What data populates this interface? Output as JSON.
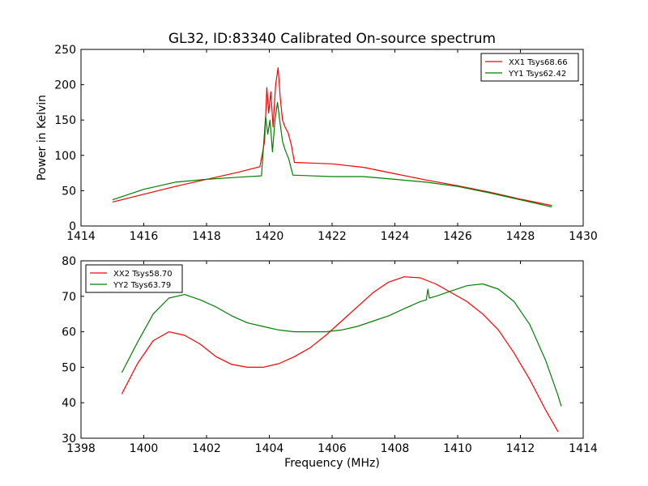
{
  "figure": {
    "title": "GL32, ID:83340 Calibrated On-source spectrum"
  },
  "chart_data": [
    {
      "type": "line",
      "title": "GL32, ID:83340 Calibrated On-source spectrum",
      "xlabel": "",
      "ylabel": "Power in Kelvin",
      "xlim": [
        1414,
        1430
      ],
      "ylim": [
        0,
        250
      ],
      "x_ticks": [
        1414,
        1416,
        1418,
        1420,
        1422,
        1424,
        1426,
        1428,
        1430
      ],
      "y_ticks": [
        0,
        50,
        100,
        150,
        200,
        250
      ],
      "legend_position": "top-right",
      "grid": false,
      "series": [
        {
          "name": "XX1 Tsys68.66",
          "color": "#ff0000",
          "points": [
            [
              1415.0,
              34
            ],
            [
              1416.0,
              45
            ],
            [
              1417.0,
              56
            ],
            [
              1418.0,
              66
            ],
            [
              1419.0,
              76
            ],
            [
              1419.7,
              84
            ],
            [
              1419.85,
              120
            ],
            [
              1419.92,
              196
            ],
            [
              1419.98,
              160
            ],
            [
              1420.05,
              190
            ],
            [
              1420.12,
              140
            ],
            [
              1420.2,
              200
            ],
            [
              1420.28,
              224
            ],
            [
              1420.35,
              180
            ],
            [
              1420.42,
              150
            ],
            [
              1420.5,
              140
            ],
            [
              1420.6,
              132
            ],
            [
              1420.7,
              115
            ],
            [
              1420.8,
              90
            ],
            [
              1422.0,
              88
            ],
            [
              1423.0,
              83
            ],
            [
              1424.0,
              74
            ],
            [
              1425.0,
              65
            ],
            [
              1426.0,
              57
            ],
            [
              1427.0,
              48
            ],
            [
              1428.0,
              38
            ],
            [
              1429.0,
              29
            ]
          ]
        },
        {
          "name": "YY1 Tsys62.42",
          "color": "#008000",
          "points": [
            [
              1415.0,
              37
            ],
            [
              1416.0,
              52
            ],
            [
              1417.0,
              62
            ],
            [
              1418.0,
              66
            ],
            [
              1419.0,
              69
            ],
            [
              1419.75,
              71
            ],
            [
              1419.88,
              155
            ],
            [
              1419.95,
              130
            ],
            [
              1420.02,
              150
            ],
            [
              1420.1,
              105
            ],
            [
              1420.18,
              150
            ],
            [
              1420.26,
              175
            ],
            [
              1420.33,
              150
            ],
            [
              1420.42,
              120
            ],
            [
              1420.5,
              108
            ],
            [
              1420.62,
              95
            ],
            [
              1420.75,
              72
            ],
            [
              1422.0,
              70
            ],
            [
              1423.0,
              70
            ],
            [
              1424.0,
              66
            ],
            [
              1425.0,
              62
            ],
            [
              1426.0,
              56
            ],
            [
              1427.0,
              47
            ],
            [
              1428.0,
              37
            ],
            [
              1429.0,
              27
            ]
          ]
        }
      ]
    },
    {
      "type": "line",
      "title": "",
      "xlabel": "Frequency (MHz)",
      "ylabel": "",
      "xlim": [
        1398,
        1414
      ],
      "ylim": [
        30,
        80
      ],
      "x_ticks": [
        1398,
        1400,
        1402,
        1404,
        1406,
        1408,
        1410,
        1412,
        1414
      ],
      "y_ticks": [
        30,
        40,
        50,
        60,
        70,
        80
      ],
      "legend_position": "top-left",
      "grid": false,
      "series": [
        {
          "name": "XX2 Tsys58.70",
          "color": "#ff0000",
          "points": [
            [
              1399.3,
              42.5
            ],
            [
              1399.8,
              51
            ],
            [
              1400.3,
              57.5
            ],
            [
              1400.8,
              60
            ],
            [
              1401.3,
              59
            ],
            [
              1401.8,
              56.5
            ],
            [
              1402.3,
              53
            ],
            [
              1402.8,
              50.8
            ],
            [
              1403.3,
              50
            ],
            [
              1403.8,
              50
            ],
            [
              1404.3,
              51
            ],
            [
              1404.8,
              53
            ],
            [
              1405.3,
              55.5
            ],
            [
              1405.8,
              59
            ],
            [
              1406.3,
              63
            ],
            [
              1406.8,
              67
            ],
            [
              1407.3,
              71
            ],
            [
              1407.8,
              74
            ],
            [
              1408.3,
              75.5
            ],
            [
              1408.8,
              75.2
            ],
            [
              1409.3,
              73.5
            ],
            [
              1409.8,
              71
            ],
            [
              1410.3,
              68.5
            ],
            [
              1410.8,
              65
            ],
            [
              1411.3,
              60.5
            ],
            [
              1411.8,
              54
            ],
            [
              1412.3,
              46.5
            ],
            [
              1412.8,
              38
            ],
            [
              1413.2,
              31.8
            ]
          ]
        },
        {
          "name": "YY2 Tsys63.79",
          "color": "#008000",
          "points": [
            [
              1399.3,
              48.5
            ],
            [
              1399.8,
              57
            ],
            [
              1400.3,
              65
            ],
            [
              1400.8,
              69.5
            ],
            [
              1401.3,
              70.5
            ],
            [
              1401.8,
              69
            ],
            [
              1402.3,
              67
            ],
            [
              1402.8,
              64.5
            ],
            [
              1403.3,
              62.5
            ],
            [
              1403.8,
              61.5
            ],
            [
              1404.3,
              60.5
            ],
            [
              1404.8,
              60
            ],
            [
              1405.3,
              60
            ],
            [
              1405.8,
              60
            ],
            [
              1406.3,
              60.5
            ],
            [
              1406.8,
              61.5
            ],
            [
              1407.3,
              63
            ],
            [
              1407.8,
              64.5
            ],
            [
              1408.3,
              66.5
            ],
            [
              1408.8,
              68.5
            ],
            [
              1409.0,
              69
            ],
            [
              1409.05,
              72
            ],
            [
              1409.1,
              69.5
            ],
            [
              1409.3,
              70
            ],
            [
              1409.8,
              71.5
            ],
            [
              1410.3,
              73
            ],
            [
              1410.8,
              73.5
            ],
            [
              1411.3,
              72
            ],
            [
              1411.8,
              68.5
            ],
            [
              1412.3,
              62
            ],
            [
              1412.8,
              52
            ],
            [
              1413.2,
              42
            ],
            [
              1413.3,
              39
            ]
          ]
        }
      ]
    }
  ]
}
